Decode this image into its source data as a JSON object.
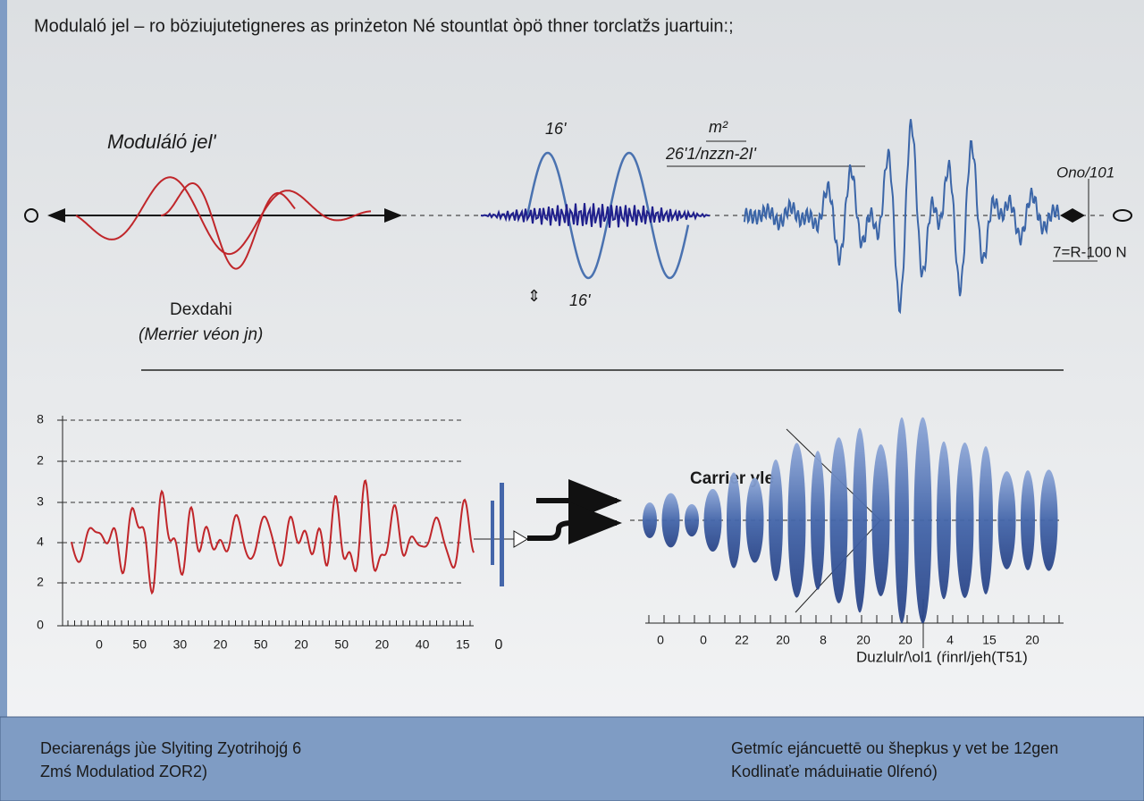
{
  "header": {
    "title": "Modulaló jel  –  ro böziujutetigneres as prinżeton Né stountlat òpö thner torclatžs juartuin:;"
  },
  "top": {
    "left_label": "Modulálό jel'",
    "left_caption": "Dexdahi",
    "left_caption_sub": "(Merrier véon jn)",
    "mid_top": "16'",
    "mid_bottom": "16'",
    "formula_top": "m²",
    "formula": "26'1/nzzn-2I'",
    "right_top": "Ono/101",
    "right_bottom": "7=R-100 N"
  },
  "bottom_left": {
    "y_labels": [
      "8",
      "2",
      "3",
      "4",
      "2",
      "0"
    ],
    "x_labels": [
      "0",
      "50",
      "30",
      "20",
      "50",
      "20",
      "50",
      "20",
      "40",
      "15"
    ],
    "end_label": "0"
  },
  "bottom_right": {
    "title": "Carrier yle",
    "x_labels": [
      "0",
      "0",
      "22",
      "20",
      "8",
      "20",
      "20",
      "4",
      "15",
      "20"
    ],
    "caption": "Duzlulr/\\ol1 (ŕinrl/jeh(T51)"
  },
  "footer": {
    "left": [
      "Deciarenágs jùe Slyiting Zyotrihojǵ 6",
      "Zmś Modulatiod ZOR2)"
    ],
    "right": [
      "Getmíc ejáncuettē ou šhepkus y vet be 12gen",
      "Kodlinaťe máduiнatie 0lŕenó)"
    ]
  }
}
